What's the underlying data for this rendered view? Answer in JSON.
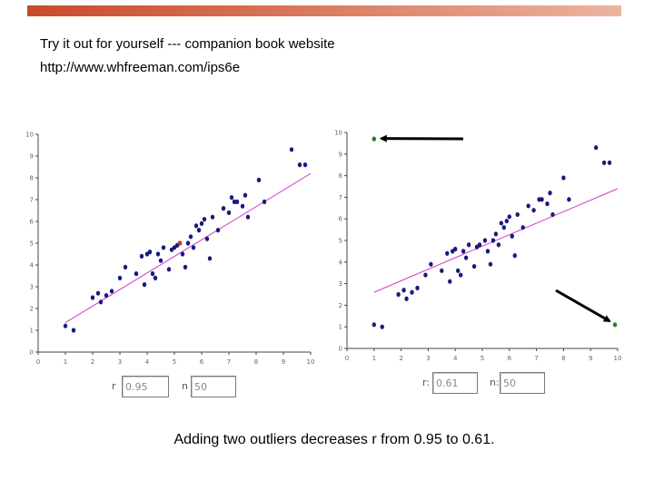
{
  "header": {
    "line1": "Try it out for yourself --- companion book website",
    "line2": "http://www.whfreeman.com/ips6e"
  },
  "caption": "Adding two outliers decreases r from 0.95 to 0.61.",
  "colors": {
    "banner": "#c94a2c",
    "points": "#1a1a7a",
    "fit_line": "#d23cc8",
    "outlier": "#2a7a2a",
    "highlight_point": "#c0392b"
  },
  "left_readout": {
    "r_label": "r",
    "r_value": "0.95",
    "n_label": "n",
    "n_value": "50"
  },
  "right_readout": {
    "r_label": "r:",
    "r_value": "0.61",
    "n_label": "n:",
    "n_value": "50"
  },
  "chart_data": [
    {
      "type": "scatter",
      "title": "",
      "xlabel": "",
      "ylabel": "",
      "xlim": [
        0,
        10
      ],
      "ylim": [
        0,
        10
      ],
      "xticks": [
        0,
        1,
        2,
        3,
        4,
        5,
        6,
        7,
        8,
        9,
        10
      ],
      "yticks": [
        0,
        1,
        2,
        3,
        4,
        5,
        6,
        7,
        8,
        9,
        10
      ],
      "fit_line": {
        "x": [
          1,
          10
        ],
        "y": [
          1.35,
          8.2
        ]
      },
      "points": [
        {
          "x": 1.0,
          "y": 1.2
        },
        {
          "x": 1.3,
          "y": 1.0
        },
        {
          "x": 2.0,
          "y": 2.5
        },
        {
          "x": 2.2,
          "y": 2.7
        },
        {
          "x": 2.5,
          "y": 2.6
        },
        {
          "x": 2.7,
          "y": 2.8
        },
        {
          "x": 3.2,
          "y": 3.9
        },
        {
          "x": 3.6,
          "y": 3.6
        },
        {
          "x": 3.9,
          "y": 3.1
        },
        {
          "x": 3.8,
          "y": 4.4
        },
        {
          "x": 4.1,
          "y": 4.6
        },
        {
          "x": 4.2,
          "y": 3.6
        },
        {
          "x": 4.4,
          "y": 4.5
        },
        {
          "x": 4.6,
          "y": 4.8
        },
        {
          "x": 4.8,
          "y": 3.8
        },
        {
          "x": 4.9,
          "y": 4.7
        },
        {
          "x": 5.0,
          "y": 4.8
        },
        {
          "x": 5.2,
          "y": 5.0
        },
        {
          "x": 5.3,
          "y": 4.5
        },
        {
          "x": 5.4,
          "y": 3.9
        },
        {
          "x": 5.6,
          "y": 5.3
        },
        {
          "x": 5.7,
          "y": 4.8
        },
        {
          "x": 5.8,
          "y": 5.8
        },
        {
          "x": 6.0,
          "y": 5.9
        },
        {
          "x": 6.1,
          "y": 6.1
        },
        {
          "x": 6.2,
          "y": 5.2
        },
        {
          "x": 6.3,
          "y": 4.3
        },
        {
          "x": 6.6,
          "y": 5.6
        },
        {
          "x": 7.0,
          "y": 6.4
        },
        {
          "x": 7.2,
          "y": 6.9
        },
        {
          "x": 7.3,
          "y": 6.9
        },
        {
          "x": 7.5,
          "y": 6.7
        },
        {
          "x": 7.6,
          "y": 7.2
        },
        {
          "x": 7.7,
          "y": 6.2
        },
        {
          "x": 8.1,
          "y": 7.9
        },
        {
          "x": 8.3,
          "y": 6.9
        },
        {
          "x": 9.3,
          "y": 9.3
        },
        {
          "x": 9.6,
          "y": 8.6
        },
        {
          "x": 9.8,
          "y": 8.6
        },
        {
          "x": 4.0,
          "y": 4.5
        },
        {
          "x": 4.5,
          "y": 4.2
        },
        {
          "x": 5.5,
          "y": 5.0
        },
        {
          "x": 6.8,
          "y": 6.6
        },
        {
          "x": 5.9,
          "y": 5.6
        },
        {
          "x": 4.3,
          "y": 3.4
        },
        {
          "x": 3.0,
          "y": 3.4
        },
        {
          "x": 2.3,
          "y": 2.3
        },
        {
          "x": 6.4,
          "y": 6.2
        },
        {
          "x": 5.1,
          "y": 4.9
        },
        {
          "x": 7.1,
          "y": 7.1
        }
      ]
    },
    {
      "type": "scatter",
      "title": "",
      "xlabel": "",
      "ylabel": "",
      "xlim": [
        0,
        10
      ],
      "ylim": [
        0,
        10
      ],
      "xticks": [
        0,
        1,
        2,
        3,
        4,
        5,
        6,
        7,
        8,
        9,
        10
      ],
      "yticks": [
        0,
        1,
        2,
        3,
        4,
        5,
        6,
        7,
        8,
        9,
        10
      ],
      "fit_line": {
        "x": [
          1,
          10
        ],
        "y": [
          2.6,
          7.4
        ]
      },
      "outliers": [
        {
          "x": 1.0,
          "y": 9.7
        },
        {
          "x": 9.9,
          "y": 1.1
        }
      ],
      "points": [
        {
          "x": 1.0,
          "y": 1.1
        },
        {
          "x": 1.3,
          "y": 1.0
        },
        {
          "x": 1.9,
          "y": 2.5
        },
        {
          "x": 2.1,
          "y": 2.7
        },
        {
          "x": 2.4,
          "y": 2.6
        },
        {
          "x": 2.6,
          "y": 2.8
        },
        {
          "x": 3.1,
          "y": 3.9
        },
        {
          "x": 3.5,
          "y": 3.6
        },
        {
          "x": 3.8,
          "y": 3.1
        },
        {
          "x": 3.7,
          "y": 4.4
        },
        {
          "x": 4.0,
          "y": 4.6
        },
        {
          "x": 4.1,
          "y": 3.6
        },
        {
          "x": 4.3,
          "y": 4.5
        },
        {
          "x": 4.5,
          "y": 4.8
        },
        {
          "x": 4.7,
          "y": 3.8
        },
        {
          "x": 4.8,
          "y": 4.7
        },
        {
          "x": 4.9,
          "y": 4.8
        },
        {
          "x": 5.1,
          "y": 5.0
        },
        {
          "x": 5.2,
          "y": 4.5
        },
        {
          "x": 5.3,
          "y": 3.9
        },
        {
          "x": 5.5,
          "y": 5.3
        },
        {
          "x": 5.6,
          "y": 4.8
        },
        {
          "x": 5.7,
          "y": 5.8
        },
        {
          "x": 5.9,
          "y": 5.9
        },
        {
          "x": 6.0,
          "y": 6.1
        },
        {
          "x": 6.1,
          "y": 5.2
        },
        {
          "x": 6.2,
          "y": 4.3
        },
        {
          "x": 6.5,
          "y": 5.6
        },
        {
          "x": 6.9,
          "y": 6.4
        },
        {
          "x": 7.1,
          "y": 6.9
        },
        {
          "x": 7.2,
          "y": 6.9
        },
        {
          "x": 7.4,
          "y": 6.7
        },
        {
          "x": 7.5,
          "y": 7.2
        },
        {
          "x": 7.6,
          "y": 6.2
        },
        {
          "x": 8.0,
          "y": 7.9
        },
        {
          "x": 8.2,
          "y": 6.9
        },
        {
          "x": 9.2,
          "y": 9.3
        },
        {
          "x": 9.5,
          "y": 8.6
        },
        {
          "x": 9.7,
          "y": 8.6
        },
        {
          "x": 3.9,
          "y": 4.5
        },
        {
          "x": 4.4,
          "y": 4.2
        },
        {
          "x": 5.4,
          "y": 5.0
        },
        {
          "x": 6.7,
          "y": 6.6
        },
        {
          "x": 5.8,
          "y": 5.6
        },
        {
          "x": 4.2,
          "y": 3.4
        },
        {
          "x": 2.9,
          "y": 3.4
        },
        {
          "x": 2.2,
          "y": 2.3
        },
        {
          "x": 6.3,
          "y": 6.2
        }
      ]
    }
  ]
}
